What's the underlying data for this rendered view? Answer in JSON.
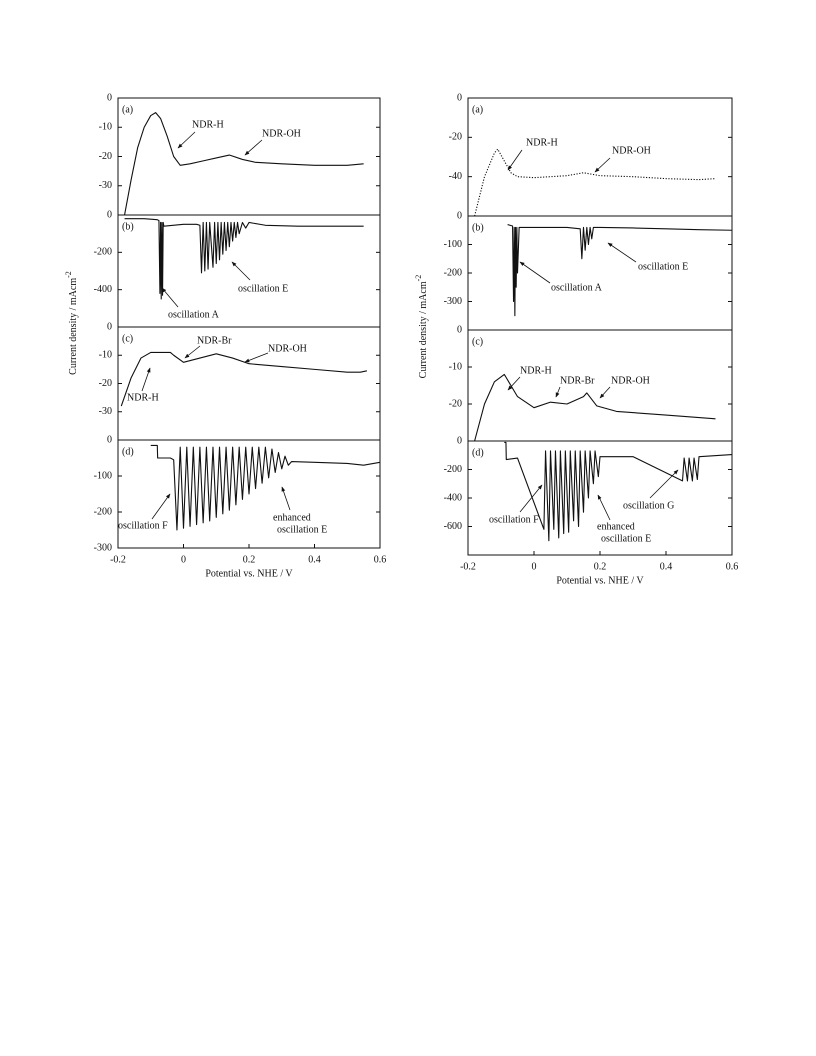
{
  "chart_data": [
    {
      "type": "line",
      "label": "(a)",
      "y_label": "Current density / mAcm",
      "y_label_sup": "-2",
      "color": "#111",
      "xlim": [
        -0.2,
        0.6
      ],
      "ylim": [
        -40,
        0
      ],
      "yticks": [
        0,
        -10,
        -20,
        -30
      ],
      "x": [
        -0.18,
        -0.16,
        -0.14,
        -0.12,
        -0.1,
        -0.085,
        -0.07,
        -0.05,
        -0.03,
        -0.01,
        0.02,
        0.06,
        0.1,
        0.14,
        0.18,
        0.22,
        0.3,
        0.4,
        0.5,
        0.55
      ],
      "values": [
        -40,
        -28,
        -17,
        -10,
        -6,
        -5,
        -7,
        -13,
        -20,
        -23,
        -22.5,
        -21.5,
        -20.5,
        -19.5,
        -21,
        -22,
        -22.5,
        -23,
        -23,
        -22.5
      ],
      "annotations": [
        "NDR-H",
        "NDR-OH"
      ]
    },
    {
      "type": "line",
      "label": "(b)",
      "color": "#111",
      "xlim": [
        -0.2,
        0.6
      ],
      "ylim": [
        -600,
        0
      ],
      "yticks": [
        0,
        -200,
        -400
      ],
      "x": [
        -0.18,
        -0.12,
        -0.08,
        -0.075,
        -0.072,
        -0.07,
        -0.068,
        -0.066,
        -0.064,
        -0.062,
        -0.06,
        0.0,
        0.04,
        0.05,
        0.055,
        0.06,
        0.065,
        0.07,
        0.075,
        0.08,
        0.09,
        0.095,
        0.1,
        0.105,
        0.11,
        0.115,
        0.12,
        0.125,
        0.13,
        0.135,
        0.14,
        0.145,
        0.15,
        0.155,
        0.16,
        0.165,
        0.17,
        0.18,
        0.19,
        0.2,
        0.25,
        0.35,
        0.45,
        0.55
      ],
      "values": [
        -20,
        -20,
        -25,
        -30,
        -420,
        -40,
        -450,
        -40,
        -430,
        -40,
        -60,
        -50,
        -50,
        -55,
        -310,
        -40,
        -300,
        -40,
        -290,
        -40,
        -280,
        -40,
        -260,
        -40,
        -240,
        -40,
        -210,
        -40,
        -190,
        -40,
        -170,
        -40,
        -140,
        -40,
        -120,
        -40,
        -100,
        -40,
        -70,
        -40,
        -55,
        -60,
        -60,
        -60
      ],
      "annotations": [
        "oscillation A",
        "oscillation E"
      ]
    },
    {
      "type": "line",
      "label": "(c)",
      "color": "#111",
      "xlim": [
        -0.2,
        0.6
      ],
      "ylim": [
        -40,
        0
      ],
      "yticks": [
        0,
        -10,
        -20,
        -30
      ],
      "x": [
        -0.19,
        -0.16,
        -0.13,
        -0.1,
        -0.07,
        -0.04,
        -0.03,
        0.0,
        0.05,
        0.1,
        0.15,
        0.2,
        0.3,
        0.4,
        0.5,
        0.54,
        0.56
      ],
      "values": [
        -28,
        -18,
        -11,
        -9,
        -9,
        -9,
        -10,
        -12.5,
        -11,
        -9.5,
        -11,
        -13,
        -14,
        -15,
        -16,
        -16,
        -15.5
      ],
      "annotations": [
        "NDR-Br",
        "NDR-OH",
        "NDR-H"
      ]
    },
    {
      "type": "line",
      "label": "(d)",
      "x_label": "Potential vs. NHE / V",
      "color": "#111",
      "xlim": [
        -0.2,
        0.6
      ],
      "xticks": [
        -0.2,
        0,
        0.2,
        0.4,
        0.6
      ],
      "ylim": [
        -300,
        0
      ],
      "yticks": [
        0,
        -100,
        -200,
        -300
      ],
      "x": [
        -0.1,
        -0.08,
        -0.079,
        -0.04,
        -0.03,
        -0.02,
        -0.01,
        0,
        0.01,
        0.02,
        0.03,
        0.04,
        0.05,
        0.06,
        0.07,
        0.08,
        0.09,
        0.1,
        0.11,
        0.12,
        0.13,
        0.14,
        0.15,
        0.16,
        0.17,
        0.18,
        0.19,
        0.2,
        0.21,
        0.22,
        0.23,
        0.24,
        0.25,
        0.26,
        0.27,
        0.28,
        0.29,
        0.3,
        0.31,
        0.32,
        0.33,
        0.4,
        0.5,
        0.55,
        0.6
      ],
      "values": [
        -15,
        -15,
        -50,
        -50,
        -55,
        -250,
        -20,
        -245,
        -20,
        -240,
        -20,
        -235,
        -20,
        -230,
        -20,
        -225,
        -20,
        -215,
        -20,
        -205,
        -20,
        -195,
        -20,
        -180,
        -20,
        -165,
        -20,
        -150,
        -20,
        -135,
        -20,
        -120,
        -20,
        -105,
        -25,
        -90,
        -35,
        -80,
        -45,
        -70,
        -60,
        -62,
        -65,
        -70,
        -62
      ],
      "annotations": [
        "oscillation F",
        [
          "enhanced",
          "oscillation E"
        ]
      ]
    },
    {
      "type": "line",
      "label": "(a)",
      "y_label": "Current density / mAcm",
      "y_label_sup": "-2",
      "color": "#111",
      "dash": "dotted",
      "xlim": [
        -0.2,
        0.6
      ],
      "ylim": [
        -60,
        0
      ],
      "yticks": [
        0,
        -20,
        -40
      ],
      "x": [
        -0.18,
        -0.15,
        -0.12,
        -0.11,
        -0.09,
        -0.07,
        -0.05,
        0.0,
        0.05,
        0.1,
        0.15,
        0.2,
        0.3,
        0.4,
        0.5,
        0.55
      ],
      "values": [
        -60,
        -40,
        -28,
        -26,
        -32,
        -38,
        -40,
        -40.5,
        -40,
        -39.5,
        -38,
        -39.5,
        -40,
        -41,
        -41.5,
        -41
      ],
      "annotations": [
        "NDR-H",
        "NDR-OH"
      ]
    },
    {
      "type": "line",
      "label": "(b)",
      "color": "#111",
      "xlim": [
        -0.2,
        0.6
      ],
      "ylim": [
        -400,
        0
      ],
      "yticks": [
        0,
        -100,
        -200,
        -300
      ],
      "x": [
        -0.08,
        -0.065,
        -0.062,
        -0.06,
        -0.058,
        -0.056,
        -0.054,
        -0.052,
        -0.05,
        -0.045,
        0.1,
        0.14,
        0.145,
        0.15,
        0.155,
        0.16,
        0.165,
        0.17,
        0.175,
        0.18,
        0.2,
        0.3,
        0.4,
        0.5,
        0.6
      ],
      "values": [
        -30,
        -35,
        -300,
        -40,
        -350,
        -40,
        -250,
        -40,
        -200,
        -40,
        -40,
        -45,
        -150,
        -40,
        -120,
        -40,
        -100,
        -40,
        -80,
        -40,
        -40,
        -42,
        -45,
        -48,
        -50
      ],
      "annotations": [
        "oscillation A",
        "oscillation E"
      ]
    },
    {
      "type": "line",
      "label": "(c)",
      "color": "#111",
      "xlim": [
        -0.2,
        0.6
      ],
      "ylim": [
        -30,
        0
      ],
      "yticks": [
        0,
        -10,
        -20
      ],
      "x": [
        -0.18,
        -0.15,
        -0.12,
        -0.09,
        -0.07,
        -0.05,
        0.0,
        0.05,
        0.1,
        0.15,
        0.16,
        0.19,
        0.25,
        0.4,
        0.55
      ],
      "values": [
        -30,
        -20,
        -14,
        -12,
        -15,
        -18,
        -21,
        -19.5,
        -20,
        -18,
        -17,
        -20.5,
        -22,
        -23,
        -24
      ],
      "annotations": [
        "NDR-H",
        "NDR-Br",
        "NDR-OH"
      ]
    },
    {
      "type": "line",
      "label": "(d)",
      "x_label": "Potential vs. NHE / V",
      "color": "#111",
      "xlim": [
        -0.2,
        0.6
      ],
      "xticks": [
        -0.2,
        0,
        0.2,
        0.4,
        0.6
      ],
      "ylim": [
        -800,
        0
      ],
      "yticks": [
        0,
        -200,
        -400,
        -600
      ],
      "x": [
        -0.09,
        -0.085,
        -0.084,
        -0.05,
        0.03,
        0.035,
        0.045,
        0.05,
        0.06,
        0.065,
        0.075,
        0.08,
        0.09,
        0.095,
        0.105,
        0.11,
        0.12,
        0.125,
        0.135,
        0.14,
        0.15,
        0.155,
        0.165,
        0.17,
        0.18,
        0.185,
        0.195,
        0.2,
        0.3,
        0.45,
        0.455,
        0.465,
        0.47,
        0.48,
        0.485,
        0.495,
        0.5,
        0.6
      ],
      "values": [
        -10,
        -10,
        -130,
        -120,
        -620,
        -70,
        -700,
        -70,
        -620,
        -70,
        -680,
        -70,
        -650,
        -70,
        -640,
        -70,
        -560,
        -70,
        -600,
        -70,
        -500,
        -70,
        -400,
        -70,
        -300,
        -70,
        -250,
        -110,
        -110,
        -280,
        -120,
        -280,
        -120,
        -280,
        -120,
        -270,
        -110,
        -95
      ],
      "annotations": [
        "oscillation F",
        [
          "enhanced",
          "oscillation E"
        ],
        "oscillation G"
      ]
    }
  ]
}
